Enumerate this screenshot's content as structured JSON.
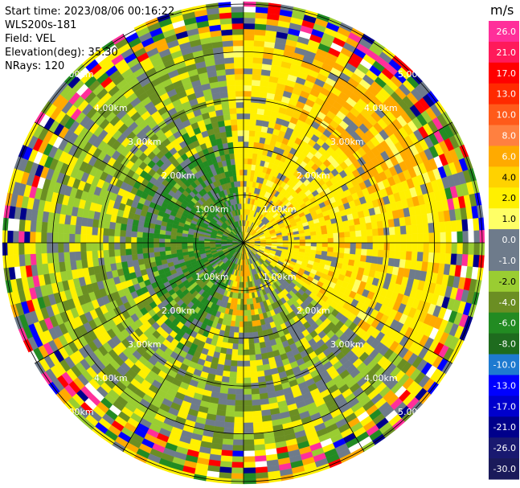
{
  "header": {
    "start_time": "Start time: 2023/08/06 00:16:22",
    "instrument": "WLS200s-181",
    "field": "Field: VEL",
    "elevation": "Elevation(deg): 35.30",
    "nrays": "NRays: 120"
  },
  "colorbar": {
    "unit": "m/s",
    "ticks": [
      "26.0",
      "21.0",
      "17.0",
      "13.0",
      "10.0",
      "8.0",
      "6.0",
      "4.0",
      "2.0",
      "1.0",
      "0.0",
      "-1.0",
      "-2.0",
      "-4.0",
      "-6.0",
      "-8.0",
      "-10.0",
      "-13.0",
      "-17.0",
      "-21.0",
      "-26.0",
      "-30.0"
    ],
    "colors": [
      "#ff2f9a",
      "#ff1a5a",
      "#ff0000",
      "#ff2a00",
      "#ff5a1a",
      "#ff8040",
      "#ffaa00",
      "#ffd200",
      "#fff000",
      "#ffff66",
      "#6e7b8b",
      "#6e7b8b",
      "#9acd32",
      "#6b8e23",
      "#228b22",
      "#1e6b1e",
      "#1e7ad0",
      "#0000ff",
      "#0000cd",
      "#00008b",
      "#191970",
      "#1a1a5a"
    ]
  },
  "chart_data": {
    "type": "heatmap",
    "projection": "polar-ppi",
    "range_ring_labels": [
      "1.00km",
      "2.00km",
      "3.00km",
      "4.00km",
      "5.00km"
    ],
    "range_rings_km": [
      1,
      2,
      3,
      4,
      5
    ],
    "max_range_km": 5,
    "nrays": 120,
    "value_range": [
      -30,
      30
    ]
  }
}
